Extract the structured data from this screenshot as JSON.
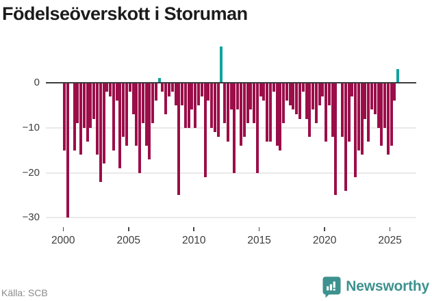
{
  "title": "Födelseöverskott i Storuman",
  "source": "Källa: SCB",
  "brand": {
    "name": "Newsworthy",
    "icon": "bar-chart-speech-bubble-icon",
    "color": "#3d918e"
  },
  "colors": {
    "negative_bar": "#9b0e49",
    "positive_bar": "#0ea3a0",
    "zero_axis": "#3b3b3b",
    "gridline": "#e9e9e9",
    "tick_label": "#3c3c3c",
    "title_text": "#1c1c1c",
    "source_text": "#8b8b8b"
  },
  "chart_data": {
    "type": "bar",
    "title": "Födelseöverskott i Storuman",
    "frequency": "quarterly",
    "start_period": "2000-Q1",
    "end_period": "2025-Q3",
    "values": [
      -15,
      -30,
      0,
      -15,
      -9,
      -16,
      -10,
      -13,
      -10,
      -8,
      -16,
      -22,
      -18,
      -2,
      -3,
      -15,
      -4,
      -19,
      -12,
      -14,
      -2,
      -7,
      -14,
      -20,
      -9,
      -14,
      -17,
      -9,
      -4,
      1,
      -2,
      -7,
      -3,
      -2,
      -5,
      -25,
      -5,
      -10,
      -10,
      -6,
      -10,
      -5,
      -3,
      -21,
      -4,
      -10,
      -11,
      -12,
      8,
      -9,
      -13,
      -6,
      -20,
      -6,
      -14,
      -12,
      -9,
      -6,
      -9,
      -20,
      -3,
      -4,
      -13,
      -13,
      -2,
      -14,
      -15,
      -9,
      -4,
      -5,
      -6,
      -7,
      -8,
      -2,
      -8,
      -12,
      -6,
      -9,
      -5,
      -3,
      -13,
      -5,
      -12,
      -25,
      0,
      -12,
      -24,
      -13,
      -3,
      -21,
      -15,
      -16,
      -8,
      -13,
      -6,
      -7,
      -10,
      -14,
      -10,
      -16,
      -14,
      -4,
      3
    ],
    "x_tick_labels": [
      "2000",
      "2005",
      "2010",
      "2015",
      "2020",
      "2025"
    ],
    "y_ticks": [
      0,
      -10,
      -20,
      -30
    ],
    "y_tick_labels": [
      "0",
      "−10",
      "−20",
      "−30"
    ],
    "ylim": [
      -32,
      9
    ],
    "grid": "horizontal",
    "legend": "none",
    "xlabel": "",
    "ylabel": ""
  }
}
